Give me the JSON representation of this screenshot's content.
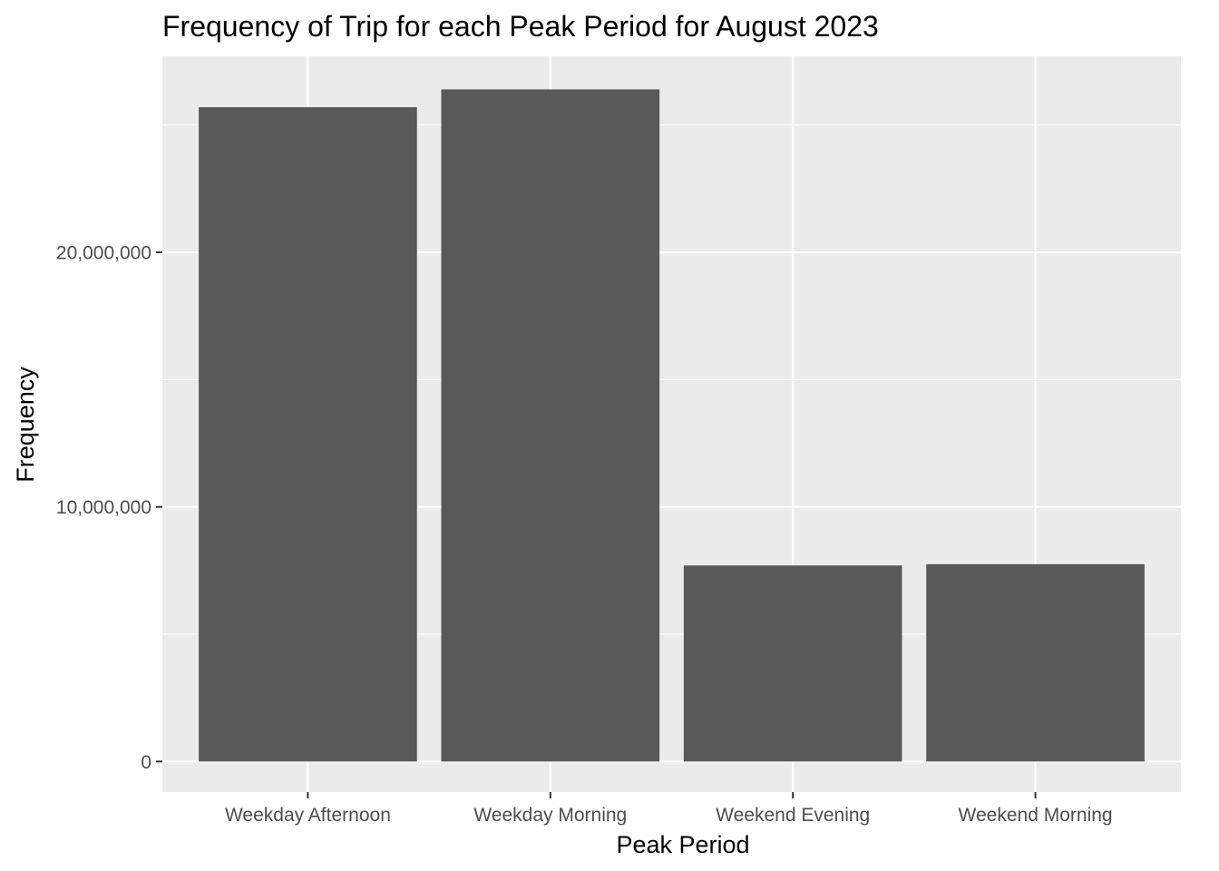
{
  "chart_data": {
    "type": "bar",
    "title": "Frequency of Trip for each Peak Period for August 2023",
    "xlabel": "Peak Period",
    "ylabel": "Frequency",
    "categories": [
      "Weekday Afternoon",
      "Weekday Morning",
      "Weekend Evening",
      "Weekend Morning"
    ],
    "values": [
      25700000,
      26400000,
      7700000,
      7750000
    ],
    "ylim": [
      -1200000,
      27700000
    ],
    "yticks": [
      0,
      10000000,
      20000000
    ],
    "ytick_labels": [
      "0",
      "10,000,000",
      "20,000,000"
    ],
    "grid": true,
    "legend": "none",
    "colors": {
      "bar": "#595959",
      "panel": "#ebebeb",
      "grid": "#ffffff",
      "tick_text": "#4d4d4d",
      "tick_mark": "#333333"
    }
  }
}
